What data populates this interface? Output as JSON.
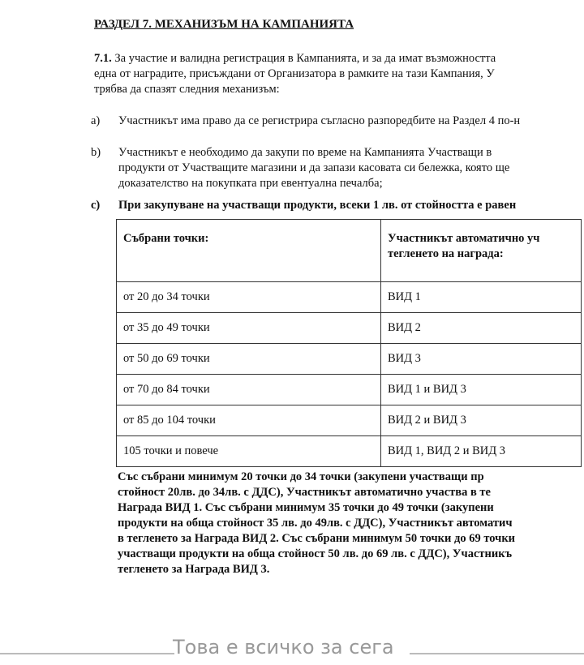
{
  "heading": "РАЗДЕЛ 7. МЕХАНИЗЪМ НА КАМПАНИЯТА",
  "intro": {
    "number": "7.1.",
    "lines": [
      "За участие и валидна регистрация в Кампанията, и за да имат възможността",
      "една от наградите, присъждани от Организатора в рамките на тази Кампания,  У",
      "трябва да спазят следния механизъм:"
    ]
  },
  "items": [
    {
      "label": "a)",
      "lines": [
        "Участникът има право да се регистрира съгласно разпоредбите на Раздел 4 по-н"
      ]
    },
    {
      "label": "b)",
      "lines": [
        "Участникът е необходимо да закупи по време на Кампанията Участващи в",
        "продукти от Участващите магазини и да запази касовата си бележка, която ще",
        "доказателство на покупката при евентуална печалба;"
      ]
    },
    {
      "label": "c)",
      "lines": [
        "При закупуване на участващи продукти, всеки 1 лв. от стойността е равен"
      ]
    }
  ],
  "table": {
    "headers": [
      "Събрани точки:",
      "Участникът автоматично уч",
      "тегленето на награда:"
    ],
    "rows": [
      [
        "от 20 до 34 точки",
        "ВИД 1"
      ],
      [
        "от 35 до 49 точки",
        "ВИД 2"
      ],
      [
        "от 50 до 69 точки",
        "ВИД 3"
      ],
      [
        "от 70 до 84 точки",
        "ВИД 1 и ВИД 3"
      ],
      [
        "от 85 до 104 точки",
        "ВИД 2 и ВИД 3"
      ],
      [
        "105 точки и повече",
        "ВИД 1, ВИД 2 и ВИД 3"
      ]
    ]
  },
  "summary": [
    "Със събрани минимум 20 точки до 34 точки (закупени участващи пр",
    "стойност 20лв. до 34лв. с ДДС), Участникът автоматично участва в те",
    "Награда ВИД 1. Със събрани минимум 35 точки до 49 точки (закупени",
    "продукти на обща стойност 35 лв. до 49лв. с ДДС), Участникът автоматич",
    "в тегленето за Награда ВИД 2. Със събрани минимум 50 точки до 69 точки",
    "участващи продукти на обща стойност 50 лв. до 69 лв. с ДДС), Участникъ",
    "тегленето за Награда ВИД 3."
  ],
  "footer": "Това е всичко за сега"
}
